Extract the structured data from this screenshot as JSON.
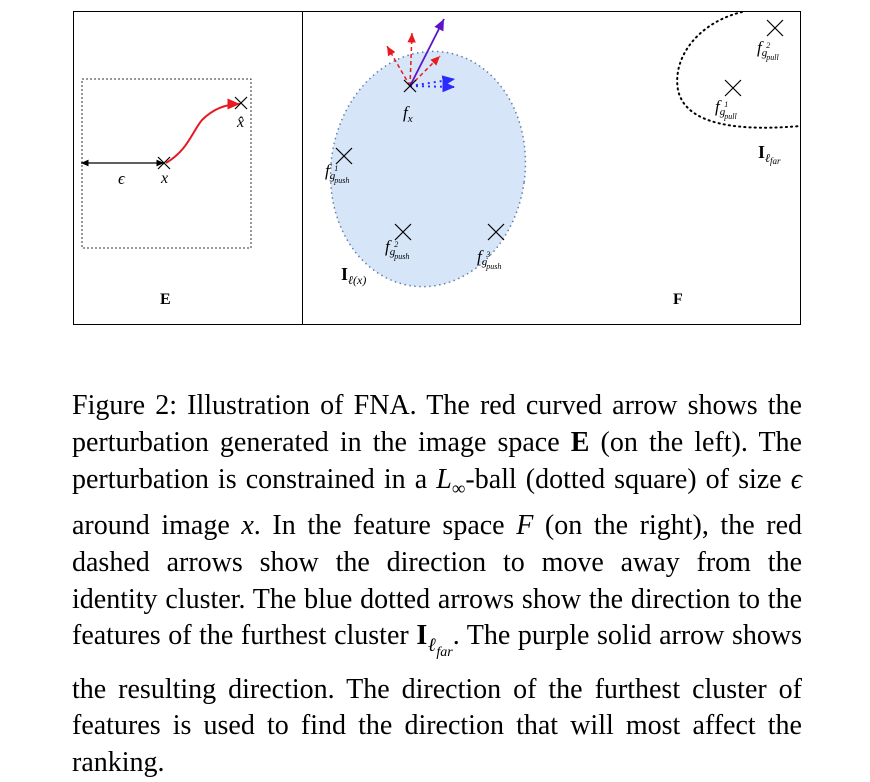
{
  "figure": {
    "left_panel_label": "E",
    "right_panel_label": "F",
    "epsilon": "ϵ",
    "x_label": "x",
    "xhat_label": "x̂",
    "fx": {
      "base": "f",
      "sub": "x"
    },
    "push1": {
      "base": "f",
      "sub": "g",
      "subsub": "push",
      "sup": "1"
    },
    "push2": {
      "base": "f",
      "sub": "g",
      "subsub": "push",
      "sup": "2"
    },
    "push3": {
      "base": "f",
      "sub": "g",
      "subsub": "push",
      "sup": "3"
    },
    "pull1": {
      "base": "f",
      "sub": "g",
      "subsub": "pull",
      "sup": "1"
    },
    "pull2": {
      "base": "f",
      "sub": "g",
      "subsub": "pull",
      "sup": "2"
    },
    "cluster_identity": {
      "base": "I",
      "sub": "ℓ(x)"
    },
    "cluster_far": {
      "base": "I",
      "sub": "ℓ",
      "subsub": "far"
    },
    "colors": {
      "cluster_fill": "#d6e5f8",
      "red_arrow": "#e8191f",
      "blue_arrow": "#2b2bff",
      "purple_arrow": "#5b14c8"
    }
  },
  "caption": {
    "t1": "Figure 2: Illustration of FNA. The red curved arrow shows the perturbation generated in the image space ",
    "E": "E",
    "t2": " (on the left). The perturbation is constrained in a ",
    "L": "L",
    "inf": "∞",
    "t3": "-ball (dotted square) of size ",
    "eps": "ϵ",
    "t4": " around image ",
    "x": "x",
    "t5": ". In the feature space ",
    "F": "F",
    "t6": " (on the right), the red dashed arrows show the direction to move away from the identity cluster. The blue dotted arrows show the direction to the features of the furthest cluster ",
    "I": "I",
    "ell": "ℓ",
    "far": "far",
    "t7": ". The purple solid arrow shows the resulting direction. The direction of the furthest cluster of features is used to find the direction that will most affect the ranking."
  }
}
